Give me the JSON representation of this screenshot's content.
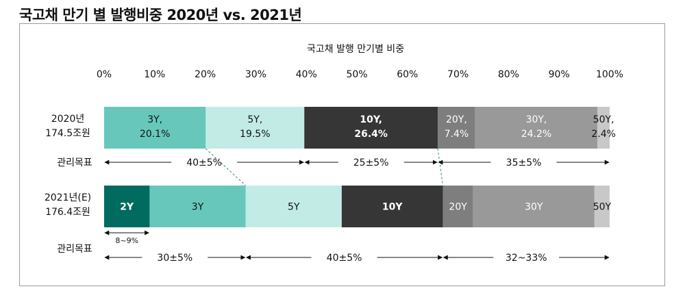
{
  "page": {
    "title": "국고채 만기 별 발행비중 2020년 vs. 2021년"
  },
  "chart_data": {
    "type": "bar",
    "orientation": "horizontal",
    "stacked": true,
    "title": "국고채 발행 만기별 비중",
    "xlim": [
      0,
      100
    ],
    "x_ticks": [
      "0%",
      "10%",
      "20%",
      "30%",
      "40%",
      "50%",
      "60%",
      "70%",
      "80%",
      "90%",
      "100%"
    ],
    "grid": false,
    "colors": {
      "2Y": "#006b5e",
      "3Y": "#67c7bb",
      "5Y": "#c2ebe6",
      "10Y": "#363636",
      "20Y": "#7e7e7e",
      "30Y": "#999999",
      "50Y": "#c8c8c8"
    },
    "rows": [
      {
        "label_line1": "2020년",
        "label_line2": "174.5조원",
        "segments": [
          {
            "maturity": "3Y",
            "label": "3Y,",
            "pct_label": "20.1%",
            "value": 20.1
          },
          {
            "maturity": "5Y",
            "label": "5Y,",
            "pct_label": "19.5%",
            "value": 19.5
          },
          {
            "maturity": "10Y",
            "label": "10Y,",
            "pct_label": "26.4%",
            "value": 26.4
          },
          {
            "maturity": "20Y",
            "label": "20Y,",
            "pct_label": "7.4%",
            "value": 7.4
          },
          {
            "maturity": "30Y",
            "label": "30Y,",
            "pct_label": "24.2%",
            "value": 24.2
          },
          {
            "maturity": "50Y",
            "label": "50Y,",
            "pct_label": "2.4%",
            "value": 2.4
          }
        ]
      },
      {
        "label_line1": "2021년(E)",
        "label_line2": "176.4조원",
        "segments": [
          {
            "maturity": "2Y",
            "label": "2Y",
            "value": 9
          },
          {
            "maturity": "3Y",
            "label": "3Y",
            "value": 19
          },
          {
            "maturity": "5Y",
            "label": "5Y",
            "value": 19
          },
          {
            "maturity": "10Y",
            "label": "10Y",
            "value": 20
          },
          {
            "maturity": "20Y",
            "label": "20Y",
            "value": 6
          },
          {
            "maturity": "30Y",
            "label": "30Y",
            "value": 24
          },
          {
            "maturity": "50Y",
            "label": "50Y",
            "value": 3
          }
        ]
      }
    ],
    "targets_2020": {
      "label": "관리목표",
      "ranges": [
        {
          "from": 0,
          "to": 39.6,
          "text": "40±5%"
        },
        {
          "from": 39.6,
          "to": 66,
          "text": "25±5%"
        },
        {
          "from": 66,
          "to": 100,
          "text": "35±5%"
        }
      ]
    },
    "targets_2021": {
      "label": "관리목표",
      "short_range": {
        "from": 0,
        "to": 9,
        "text": "8~9%"
      },
      "ranges": [
        {
          "from": 0,
          "to": 28,
          "text": "30±5%"
        },
        {
          "from": 28,
          "to": 67,
          "text": "40±5%"
        },
        {
          "from": 67,
          "to": 100,
          "text": "32~33%"
        }
      ]
    },
    "connectors": [
      {
        "x2020": 20.1,
        "x2021": 28
      },
      {
        "x2020": 66,
        "x2021": 67
      }
    ]
  }
}
